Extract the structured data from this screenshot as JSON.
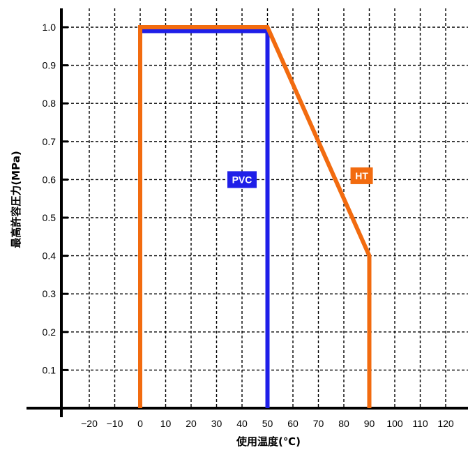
{
  "chart_data": {
    "type": "line",
    "xlabel": "使用温度(℃)",
    "ylabel": "最高許容圧力(MPa)",
    "xlim": [
      -30,
      125
    ],
    "ylim": [
      0,
      1.05
    ],
    "x_ticks": [
      -20,
      -10,
      0,
      10,
      20,
      30,
      40,
      50,
      60,
      70,
      80,
      90,
      100,
      110,
      120
    ],
    "x_tick_labels": [
      "−20",
      "−10",
      "0",
      "10",
      "20",
      "30",
      "40",
      "50",
      "60",
      "70",
      "80",
      "90",
      "100",
      "110",
      "120"
    ],
    "y_ticks": [
      0.1,
      0.2,
      0.3,
      0.4,
      0.5,
      0.6,
      0.7,
      0.8,
      0.9,
      1.0
    ],
    "y_tick_labels": [
      "0.1",
      "0.2",
      "0.3",
      "0.4",
      "0.5",
      "0.6",
      "0.7",
      "0.8",
      "0.9",
      "1.0"
    ],
    "grid": true,
    "grid_style": "dashed",
    "series": [
      {
        "name": "PVC",
        "color": "#1f1fe8",
        "x": [
          0,
          0,
          50,
          50
        ],
        "y": [
          0,
          0.99,
          0.99,
          0
        ]
      },
      {
        "name": "HT",
        "color": "#f26b0f",
        "x": [
          0,
          0,
          50,
          90,
          90
        ],
        "y": [
          0,
          1.0,
          1.0,
          0.4,
          0
        ]
      }
    ],
    "annotations": [
      {
        "text": "PVC",
        "series": "PVC",
        "x": 40,
        "y": 0.6
      },
      {
        "text": "HT",
        "series": "HT",
        "x": 87,
        "y": 0.61
      }
    ]
  }
}
